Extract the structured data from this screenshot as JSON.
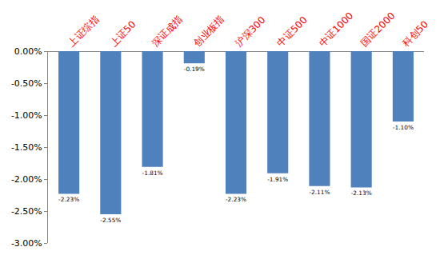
{
  "chart_data": {
    "type": "bar",
    "categories": [
      "上证综指",
      "上证50",
      "深证成指",
      "创业板指",
      "沪深300",
      "中证500",
      "中证1000",
      "国证2000",
      "科创50"
    ],
    "values": [
      -2.23,
      -2.55,
      -1.81,
      -0.19,
      -2.23,
      -1.91,
      -2.11,
      -2.13,
      -1.1
    ],
    "value_labels": [
      "-2.23%",
      "-2.55%",
      "-1.81%",
      "-0.19%",
      "-2.23%",
      "-1.91%",
      "-2.11%",
      "-2.13%",
      "-1.10%"
    ],
    "color": "#4f81bd",
    "ylim": [
      -3,
      0
    ],
    "yticks": [
      {
        "value": 0,
        "label": "0.00%"
      },
      {
        "value": -0.5,
        "label": "-0.50%"
      },
      {
        "value": -1,
        "label": "-1.00%"
      },
      {
        "value": -1.5,
        "label": "-1.50%"
      },
      {
        "value": -2,
        "label": "-2.00%"
      },
      {
        "value": -2.5,
        "label": "-2.50%"
      },
      {
        "value": -3,
        "label": "-3.00%"
      }
    ],
    "grid": false,
    "data_labels": true
  }
}
